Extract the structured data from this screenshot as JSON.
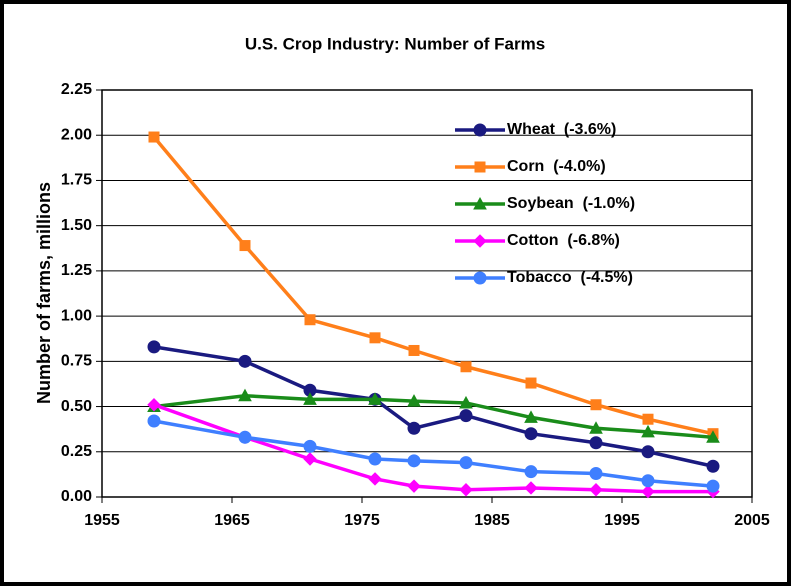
{
  "chart_data": {
    "type": "line",
    "title": "U.S. Crop Industry: Number of Farms",
    "y_label": "Number of farms, millions",
    "x": [
      1959,
      1966,
      1971,
      1976,
      1979,
      1983,
      1988,
      1993,
      1997,
      2002
    ],
    "series": [
      {
        "name": "Wheat  (-3.6%)",
        "color": "#1a1a80",
        "marker": "circle",
        "values": [
          0.83,
          0.75,
          0.59,
          0.54,
          0.38,
          0.45,
          0.35,
          0.3,
          0.25,
          0.17
        ]
      },
      {
        "name": "Corn  (-4.0%)",
        "color": "#ff7f1a",
        "marker": "square",
        "values": [
          1.99,
          1.39,
          0.98,
          0.88,
          0.81,
          0.72,
          0.63,
          0.51,
          0.43,
          0.35
        ]
      },
      {
        "name": "Soybean  (-1.0%)",
        "color": "#1a8c1a",
        "marker": "triangle",
        "values": [
          0.5,
          0.56,
          0.54,
          0.54,
          0.53,
          0.52,
          0.44,
          0.38,
          0.36,
          0.33
        ]
      },
      {
        "name": "Cotton  (-6.8%)",
        "color": "#ff00ff",
        "marker": "diamond",
        "values": [
          0.51,
          0.33,
          0.21,
          0.1,
          0.06,
          0.04,
          0.05,
          0.04,
          0.03,
          0.03
        ]
      },
      {
        "name": "Tobacco  (-4.5%)",
        "color": "#3f7fff",
        "marker": "circle",
        "values": [
          0.42,
          0.33,
          0.28,
          0.21,
          0.2,
          0.19,
          0.14,
          0.13,
          0.09,
          0.06
        ]
      }
    ],
    "xlim": [
      1955,
      2005
    ],
    "xticks": [
      1955,
      1965,
      1975,
      1985,
      1995,
      2005
    ],
    "ylim": [
      0,
      2.25
    ],
    "yticks": [
      {
        "value": 0,
        "label": "0.00"
      },
      {
        "value": 0.25,
        "label": "0.25"
      },
      {
        "value": 0.5,
        "label": "0.50"
      },
      {
        "value": 0.75,
        "label": "0.75"
      },
      {
        "value": 1,
        "label": "1.00"
      },
      {
        "value": 1.25,
        "label": "1.25"
      },
      {
        "value": 1.5,
        "label": "1.50"
      },
      {
        "value": 1.75,
        "label": "1.75"
      },
      {
        "value": 2,
        "label": "2.00"
      },
      {
        "value": 2.25,
        "label": "2.25"
      }
    ],
    "grid": true,
    "legend": "upper right"
  }
}
